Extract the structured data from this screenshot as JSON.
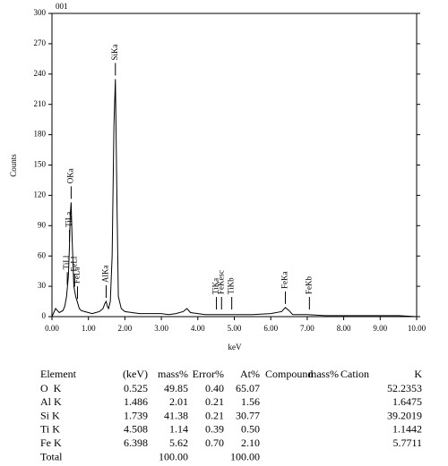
{
  "chart_data": {
    "type": "line",
    "corner_label": "001",
    "ylabel": "Counts",
    "xlabel": "keV",
    "x": [
      0.0,
      0.1,
      0.2,
      0.3,
      0.35,
      0.4,
      0.45,
      0.48,
      0.5,
      0.525,
      0.55,
      0.6,
      0.65,
      0.7,
      0.75,
      0.8,
      0.9,
      1.0,
      1.1,
      1.2,
      1.3,
      1.4,
      1.45,
      1.486,
      1.52,
      1.55,
      1.6,
      1.65,
      1.7,
      1.739,
      1.78,
      1.82,
      1.9,
      2.0,
      2.2,
      2.4,
      2.6,
      2.8,
      3.0,
      3.2,
      3.4,
      3.6,
      3.7,
      3.8,
      4.0,
      4.2,
      4.5,
      4.8,
      5.0,
      5.5,
      6.0,
      6.3,
      6.4,
      6.5,
      6.6,
      7.0,
      7.5,
      8.0,
      8.5,
      9.0,
      9.5,
      10.0
    ],
    "series": [
      {
        "color": "#000000",
        "values": [
          0,
          8,
          4,
          6,
          10,
          20,
          40,
          70,
          100,
          113,
          80,
          30,
          20,
          14,
          8,
          6,
          5,
          4,
          3,
          4,
          5,
          8,
          13,
          15,
          10,
          8,
          15,
          60,
          190,
          235,
          120,
          20,
          8,
          5,
          4,
          3,
          3,
          3,
          3,
          2,
          3,
          5,
          8,
          4,
          3,
          2,
          2,
          2,
          2,
          2,
          3,
          5,
          9,
          6,
          2,
          2,
          1,
          1,
          1,
          1,
          1,
          0
        ]
      }
    ],
    "xlim": [
      0,
      10
    ],
    "ylim": [
      0,
      300
    ],
    "xticks": [
      {
        "value": 0,
        "label": "0.00"
      },
      {
        "value": 1,
        "label": "1.00"
      },
      {
        "value": 2,
        "label": "2.00"
      },
      {
        "value": 3,
        "label": "3.00"
      },
      {
        "value": 4,
        "label": "4.00"
      },
      {
        "value": 5,
        "label": "5.00"
      },
      {
        "value": 6,
        "label": "6.00"
      },
      {
        "value": 7,
        "label": "7.00"
      },
      {
        "value": 8,
        "label": "8.00"
      },
      {
        "value": 9,
        "label": "9.00"
      },
      {
        "value": 10,
        "label": "10.00"
      }
    ],
    "yticks": [
      0,
      30,
      60,
      90,
      120,
      150,
      180,
      210,
      240,
      270,
      300
    ],
    "annotations": [
      {
        "text": "TiLl",
        "x": 0.42
      },
      {
        "text": "TiLa",
        "x": 0.48
      },
      {
        "text": "OKa",
        "x": 0.525
      },
      {
        "text": "FeLl",
        "x": 0.62
      },
      {
        "text": "FeLa",
        "x": 0.7
      },
      {
        "text": "AlKa",
        "x": 1.486
      },
      {
        "text": "SiKa",
        "x": 1.739
      },
      {
        "text": "TiKa",
        "x": 4.51
      },
      {
        "text": "FeKesc",
        "x": 4.65
      },
      {
        "text": "TiKb",
        "x": 4.93
      },
      {
        "text": "FeKa",
        "x": 6.4
      },
      {
        "text": "FeKb",
        "x": 7.06
      }
    ]
  },
  "table": {
    "columns": [
      "Element",
      "(keV)",
      "mass%",
      "Error%",
      "At%",
      "Compound",
      "mass%",
      "Cation",
      "K"
    ],
    "rows": [
      [
        "O  K",
        "0.525",
        "49.85",
        "0.40",
        "65.07",
        null,
        null,
        null,
        "52.2353"
      ],
      [
        "Al K",
        "1.486",
        "2.01",
        "0.21",
        "1.56",
        null,
        null,
        null,
        "1.6475"
      ],
      [
        "Si K",
        "1.739",
        "41.38",
        "0.21",
        "30.77",
        null,
        null,
        null,
        "39.2019"
      ],
      [
        "Ti K",
        "4.508",
        "1.14",
        "0.39",
        "0.50",
        null,
        null,
        null,
        "1.1442"
      ],
      [
        "Fe K",
        "6.398",
        "5.62",
        "0.70",
        "2.10",
        null,
        null,
        null,
        "5.7711"
      ],
      [
        "Total",
        null,
        "100.00",
        null,
        "100.00",
        null,
        null,
        null,
        null
      ]
    ]
  }
}
